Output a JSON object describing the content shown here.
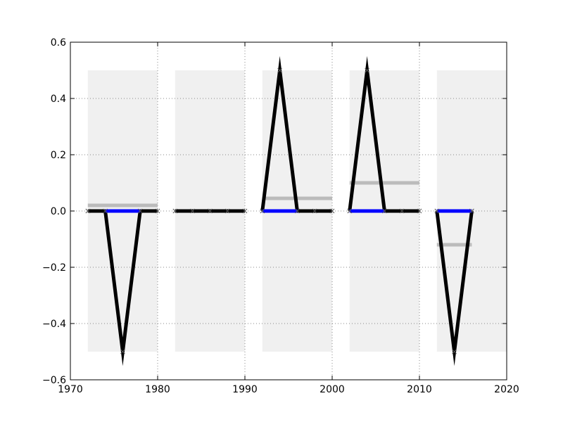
{
  "chart_data": {
    "type": "line",
    "title": "",
    "xlabel": "",
    "ylabel": "",
    "xlim": [
      1970,
      2020
    ],
    "ylim": [
      -0.6,
      0.6
    ],
    "x_ticks": [
      1970,
      1980,
      1990,
      2000,
      2010,
      2020
    ],
    "y_ticks": [
      -0.6,
      -0.4,
      -0.2,
      0.0,
      0.2,
      0.4,
      0.6
    ],
    "x_tick_labels": [
      "1970",
      "1980",
      "1990",
      "2000",
      "2010",
      "2020"
    ],
    "y_tick_labels": [
      "−0.6",
      "−0.4",
      "−0.2",
      "0.0",
      "0.2",
      "0.4",
      "0.6"
    ],
    "grid": true,
    "legend": "none",
    "colors": {
      "series": "#000000",
      "baseline": "#0000ff",
      "mean": "#bbbbbb",
      "band": "#f0f0f0",
      "grid": "#888888"
    },
    "bands": [
      {
        "x_start": 1972,
        "x_end": 1980,
        "y_low": -0.5,
        "y_high": 0.5
      },
      {
        "x_start": 1982,
        "x_end": 1990,
        "y_low": -0.5,
        "y_high": 0.5
      },
      {
        "x_start": 1992,
        "x_end": 2000,
        "y_low": -0.5,
        "y_high": 0.5
      },
      {
        "x_start": 2002,
        "x_end": 2010,
        "y_low": -0.5,
        "y_high": 0.5
      },
      {
        "x_start": 2012,
        "x_end": 2020,
        "y_low": -0.5,
        "y_high": 0.5
      }
    ],
    "series": [
      {
        "x": [
          1972,
          1974,
          1976,
          1978,
          1980
        ],
        "y": [
          0,
          0,
          -0.5,
          0,
          0
        ]
      },
      {
        "x": [
          1982,
          1984,
          1986,
          1988,
          1990
        ],
        "y": [
          0,
          0,
          0,
          0,
          0
        ]
      },
      {
        "x": [
          1992,
          1994,
          1996,
          1998,
          2000
        ],
        "y": [
          0,
          0.5,
          0,
          0,
          0
        ]
      },
      {
        "x": [
          2002,
          2004,
          2006,
          2008,
          2010
        ],
        "y": [
          0,
          0.5,
          0,
          0,
          0
        ]
      },
      {
        "x": [
          2012,
          2014,
          2016
        ],
        "y": [
          0,
          -0.5,
          0
        ]
      }
    ],
    "baseline_segments": [
      {
        "x_start": 1974,
        "x_end": 1978,
        "y": 0
      },
      {
        "x_start": 1992,
        "x_end": 1996,
        "y": 0
      },
      {
        "x_start": 2002,
        "x_end": 2006,
        "y": 0
      },
      {
        "x_start": 2012,
        "x_end": 2016,
        "y": 0
      }
    ],
    "mean_lines": [
      {
        "x_start": 1972,
        "x_end": 1980,
        "y": 0.02
      },
      {
        "x_start": 1982,
        "x_end": 1990,
        "y": 0.0
      },
      {
        "x_start": 1992,
        "x_end": 2000,
        "y": 0.045
      },
      {
        "x_start": 2002,
        "x_end": 2010,
        "y": 0.1
      },
      {
        "x_start": 2012,
        "x_end": 2016,
        "y": -0.12
      }
    ]
  }
}
